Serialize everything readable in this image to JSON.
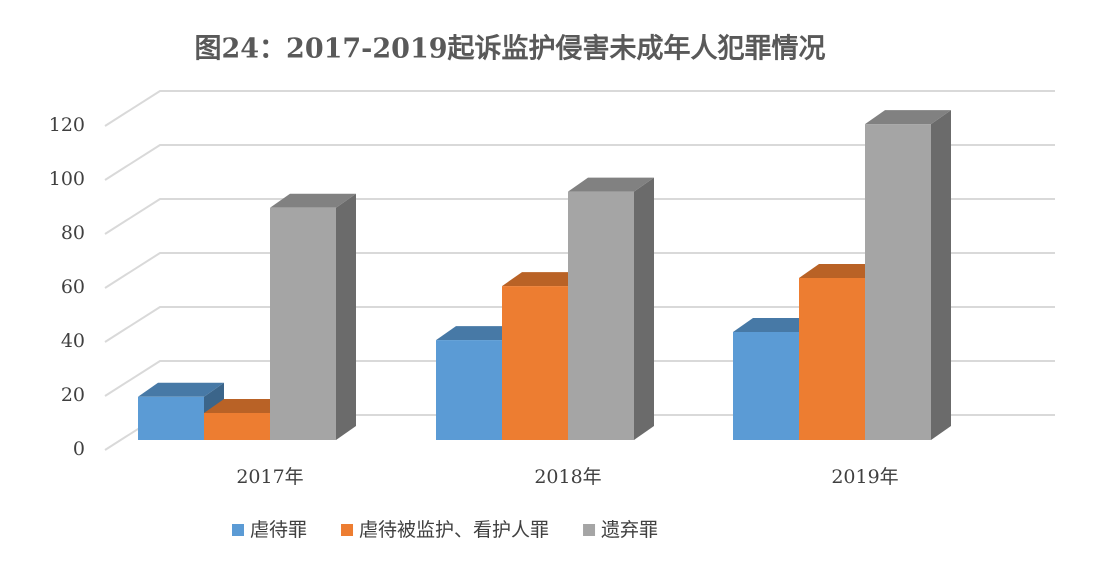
{
  "chart_data": {
    "type": "bar3d",
    "title": "图24：2017-2019起诉监护侵害未成年人犯罪情况",
    "categories": [
      "2017年",
      "2018年",
      "2019年"
    ],
    "series": [
      {
        "name": "虐待罪",
        "color": "#5b9bd5",
        "values": [
          16,
          37,
          40
        ]
      },
      {
        "name": "虐待被监护、看护人罪",
        "color": "#ed7d31",
        "values": [
          10,
          57,
          60
        ]
      },
      {
        "name": "遗弃罪",
        "color": "#a5a5a5",
        "values": [
          86,
          92,
          117
        ]
      }
    ],
    "ylim": [
      0,
      120
    ],
    "yticks": [
      0,
      20,
      40,
      60,
      80,
      100,
      120
    ],
    "grid": true,
    "legend": "bottom"
  }
}
